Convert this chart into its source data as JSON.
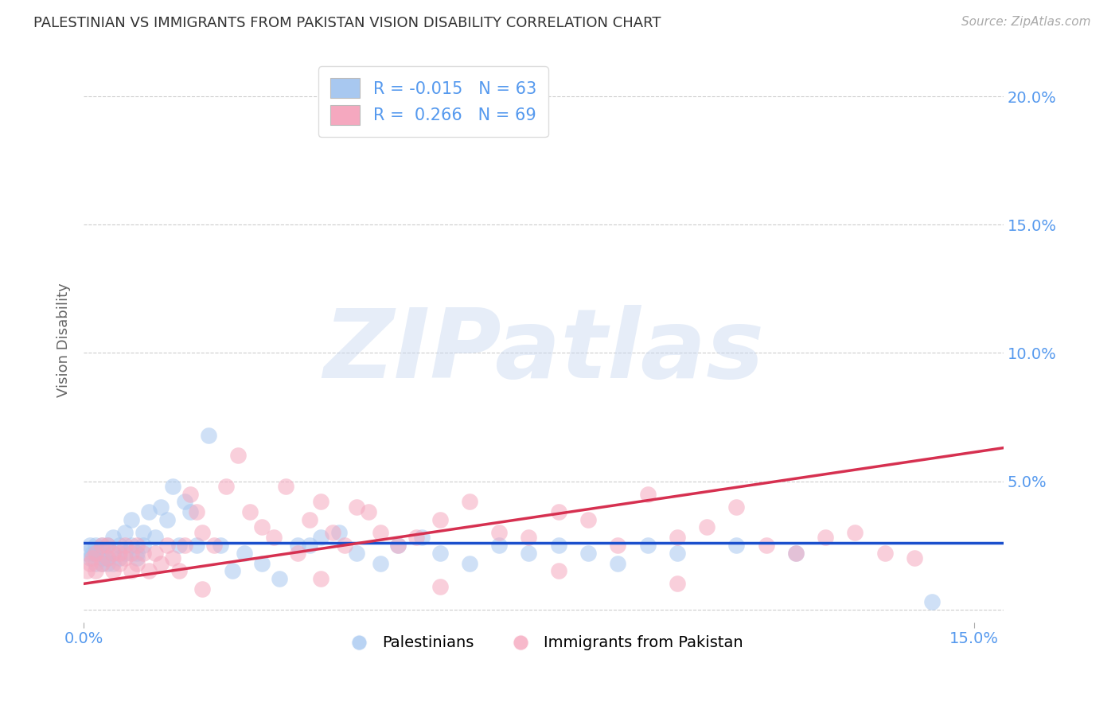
{
  "title": "PALESTINIAN VS IMMIGRANTS FROM PAKISTAN VISION DISABILITY CORRELATION CHART",
  "source": "Source: ZipAtlas.com",
  "ylabel": "Vision Disability",
  "xlim": [
    0.0,
    0.155
  ],
  "ylim": [
    -0.005,
    0.215
  ],
  "yticks": [
    0.0,
    0.05,
    0.1,
    0.15,
    0.2
  ],
  "xtick_positions": [
    0.0,
    0.15
  ],
  "xtick_labels": [
    "0.0%",
    "15.0%"
  ],
  "blue_R": -0.015,
  "blue_N": 63,
  "pink_R": 0.266,
  "pink_N": 69,
  "blue_color": "#a8c8f0",
  "pink_color": "#f5a8bf",
  "blue_line_color": "#1a4fcc",
  "pink_line_color": "#d63050",
  "watermark": "ZIPatlas",
  "legend_label_blue": "Palestinians",
  "legend_label_pink": "Immigrants from Pakistan",
  "title_color": "#333333",
  "axis_tick_color": "#5599ee",
  "background_color": "#ffffff",
  "blue_line_y0": 0.026,
  "blue_line_y1": 0.026,
  "pink_line_y0": 0.01,
  "pink_line_y1": 0.063,
  "blue_x": [
    0.0005,
    0.001,
    0.001,
    0.0015,
    0.002,
    0.002,
    0.002,
    0.0025,
    0.003,
    0.003,
    0.003,
    0.0035,
    0.004,
    0.004,
    0.004,
    0.005,
    0.005,
    0.005,
    0.006,
    0.006,
    0.007,
    0.007,
    0.008,
    0.008,
    0.009,
    0.009,
    0.01,
    0.01,
    0.011,
    0.012,
    0.013,
    0.014,
    0.015,
    0.016,
    0.017,
    0.018,
    0.019,
    0.021,
    0.023,
    0.025,
    0.027,
    0.03,
    0.033,
    0.036,
    0.038,
    0.04,
    0.043,
    0.046,
    0.05,
    0.053,
    0.057,
    0.06,
    0.065,
    0.07,
    0.075,
    0.08,
    0.085,
    0.09,
    0.095,
    0.1,
    0.11,
    0.12,
    0.143
  ],
  "blue_y": [
    0.022,
    0.025,
    0.02,
    0.022,
    0.025,
    0.022,
    0.018,
    0.022,
    0.025,
    0.02,
    0.018,
    0.022,
    0.025,
    0.02,
    0.018,
    0.028,
    0.022,
    0.018,
    0.025,
    0.02,
    0.022,
    0.03,
    0.035,
    0.025,
    0.02,
    0.022,
    0.03,
    0.025,
    0.038,
    0.028,
    0.04,
    0.035,
    0.048,
    0.025,
    0.042,
    0.038,
    0.025,
    0.068,
    0.025,
    0.015,
    0.022,
    0.018,
    0.012,
    0.025,
    0.025,
    0.028,
    0.03,
    0.022,
    0.018,
    0.025,
    0.028,
    0.022,
    0.018,
    0.025,
    0.022,
    0.025,
    0.022,
    0.018,
    0.025,
    0.022,
    0.025,
    0.022,
    0.003
  ],
  "pink_x": [
    0.0005,
    0.001,
    0.0015,
    0.002,
    0.002,
    0.003,
    0.003,
    0.004,
    0.004,
    0.005,
    0.005,
    0.006,
    0.006,
    0.007,
    0.007,
    0.008,
    0.008,
    0.009,
    0.009,
    0.01,
    0.011,
    0.012,
    0.013,
    0.014,
    0.015,
    0.016,
    0.017,
    0.018,
    0.019,
    0.02,
    0.022,
    0.024,
    0.026,
    0.028,
    0.03,
    0.032,
    0.034,
    0.036,
    0.038,
    0.04,
    0.042,
    0.044,
    0.046,
    0.048,
    0.05,
    0.053,
    0.056,
    0.06,
    0.065,
    0.07,
    0.075,
    0.08,
    0.085,
    0.09,
    0.095,
    0.1,
    0.105,
    0.11,
    0.115,
    0.12,
    0.125,
    0.13,
    0.135,
    0.14,
    0.1,
    0.08,
    0.06,
    0.04,
    0.02
  ],
  "pink_y": [
    0.015,
    0.018,
    0.02,
    0.022,
    0.015,
    0.025,
    0.018,
    0.02,
    0.025,
    0.015,
    0.022,
    0.018,
    0.022,
    0.02,
    0.025,
    0.015,
    0.022,
    0.018,
    0.025,
    0.022,
    0.015,
    0.022,
    0.018,
    0.025,
    0.02,
    0.015,
    0.025,
    0.045,
    0.038,
    0.03,
    0.025,
    0.048,
    0.06,
    0.038,
    0.032,
    0.028,
    0.048,
    0.022,
    0.035,
    0.042,
    0.03,
    0.025,
    0.04,
    0.038,
    0.03,
    0.025,
    0.028,
    0.035,
    0.042,
    0.03,
    0.028,
    0.038,
    0.035,
    0.025,
    0.045,
    0.028,
    0.032,
    0.04,
    0.025,
    0.022,
    0.028,
    0.03,
    0.022,
    0.02,
    0.01,
    0.015,
    0.009,
    0.012,
    0.008
  ]
}
